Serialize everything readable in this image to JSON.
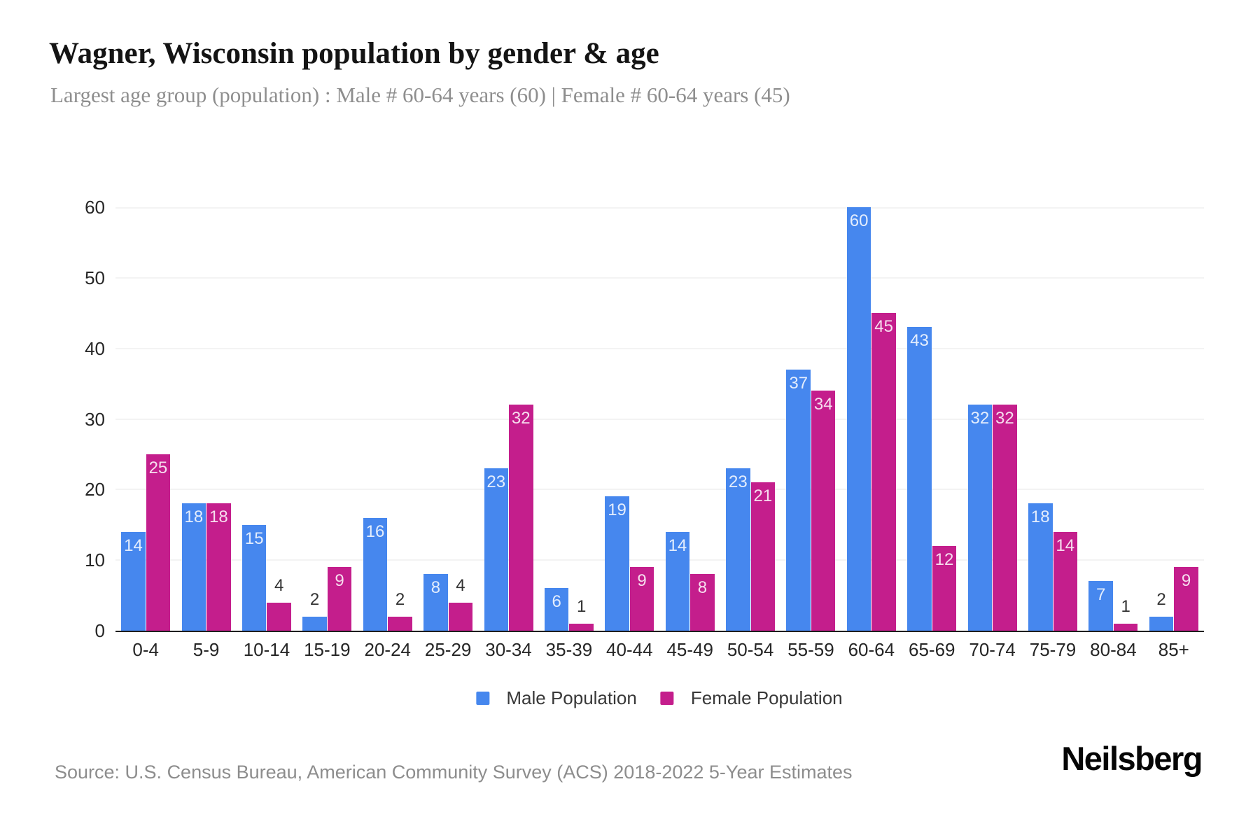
{
  "chart_data": {
    "type": "bar",
    "title": "Wagner, Wisconsin population by gender & age",
    "subtitle": "Largest age group (population) : Male # 60-64 years (60) | Female # 60-64 years (45)",
    "categories": [
      "0-4",
      "5-9",
      "10-14",
      "15-19",
      "20-24",
      "25-29",
      "30-34",
      "35-39",
      "40-44",
      "45-49",
      "50-54",
      "55-59",
      "60-64",
      "65-69",
      "70-74",
      "75-79",
      "80-84",
      "85+"
    ],
    "series": [
      {
        "name": "Male Population",
        "color": "#4687ee",
        "values": [
          14,
          18,
          15,
          2,
          16,
          8,
          23,
          6,
          19,
          14,
          23,
          37,
          60,
          43,
          32,
          18,
          7,
          2
        ]
      },
      {
        "name": "Female Population",
        "color": "#c41e8c",
        "values": [
          25,
          18,
          4,
          9,
          2,
          4,
          32,
          1,
          9,
          8,
          21,
          34,
          45,
          12,
          32,
          14,
          1,
          9
        ]
      }
    ],
    "xlabel": "",
    "ylabel": "",
    "ylim": [
      0,
      60
    ],
    "yticks": [
      0,
      10,
      20,
      30,
      40,
      50,
      60
    ],
    "grid": "horizontal",
    "legend_position": "bottom",
    "value_label_rule": "values 6 and greater shown in white inside bar top; values under 6 shown in dark text above bar"
  },
  "footer": {
    "source": "Source: U.S. Census Bureau, American Community Survey (ACS) 2018-2022 5-Year Estimates",
    "brand": "Neilsberg"
  }
}
